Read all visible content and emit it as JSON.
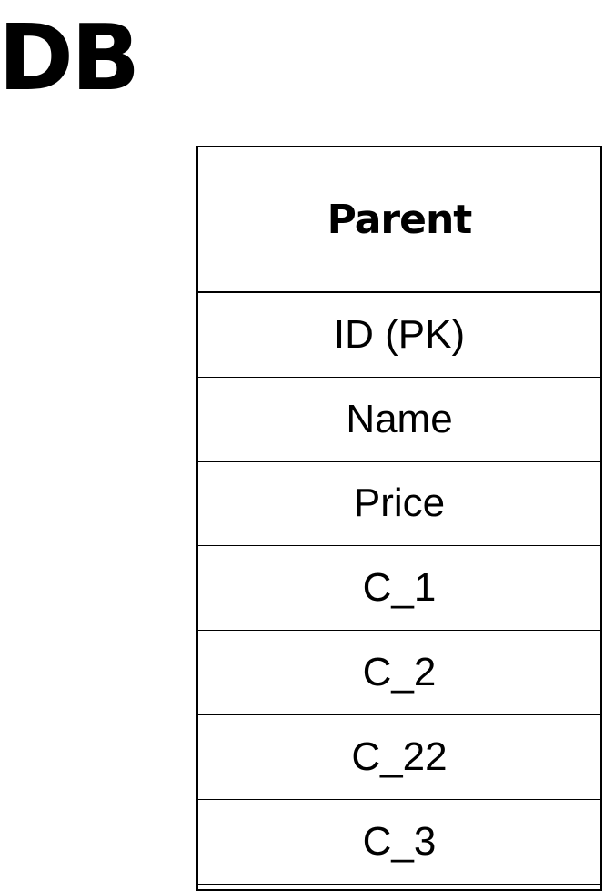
{
  "title": "DB",
  "entity": {
    "name": "Parent",
    "fields": [
      "ID (PK)",
      "Name",
      "Price",
      "C_1",
      "C_2",
      "C_22",
      "C_3"
    ]
  }
}
